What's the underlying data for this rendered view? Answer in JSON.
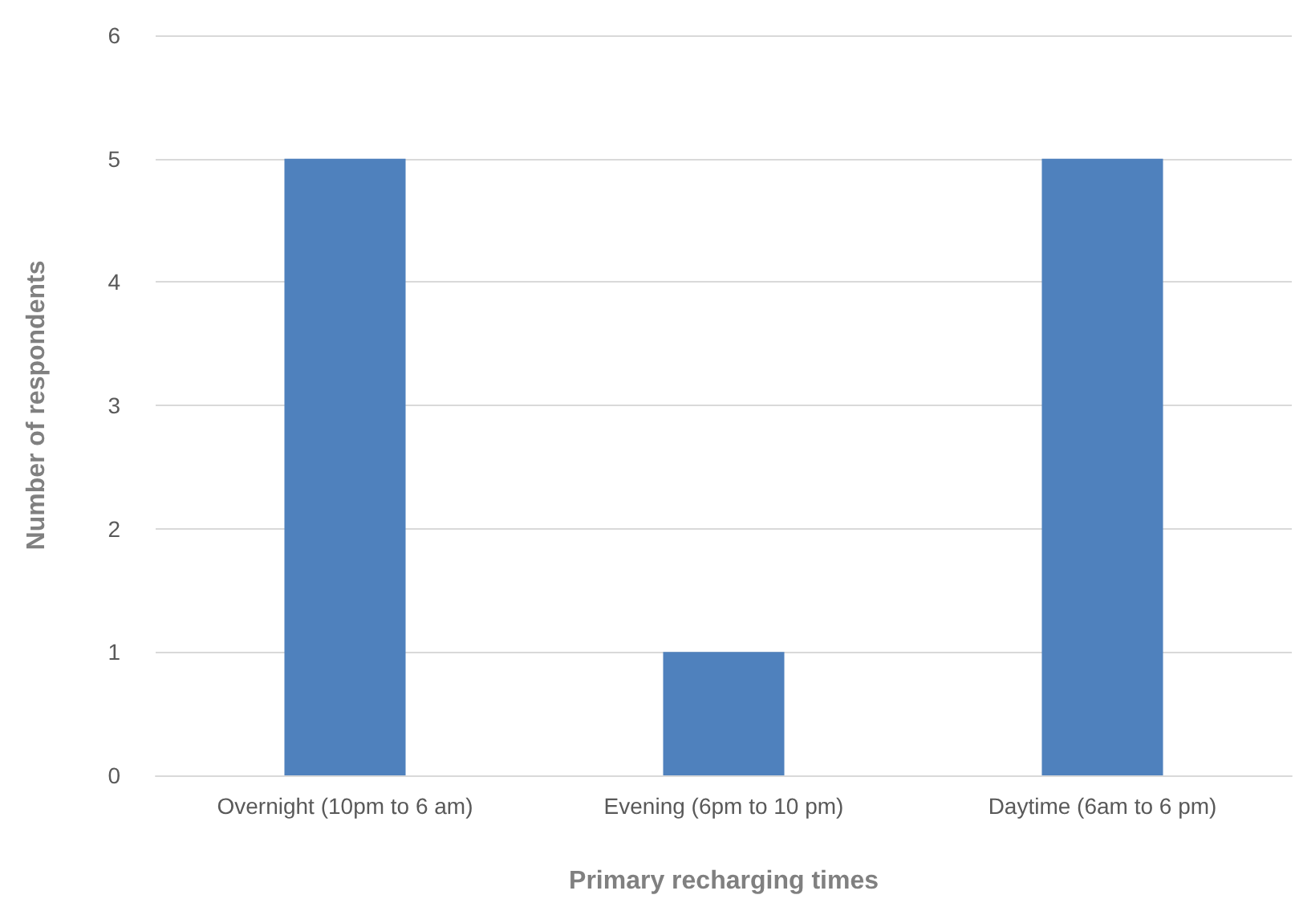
{
  "chart_data": {
    "type": "bar",
    "xlabel": "Primary recharging times",
    "ylabel": "Number of respondents",
    "categories": [
      "Overnight (10pm to 6 am)",
      "Evening (6pm to 10 pm)",
      "Daytime (6am to 6 pm)"
    ],
    "values": [
      5,
      1,
      5
    ],
    "color": "#4f81bd",
    "ylim": [
      0,
      6
    ],
    "yticks": [
      0,
      1,
      2,
      3,
      4,
      5,
      6
    ],
    "grid": "y"
  }
}
